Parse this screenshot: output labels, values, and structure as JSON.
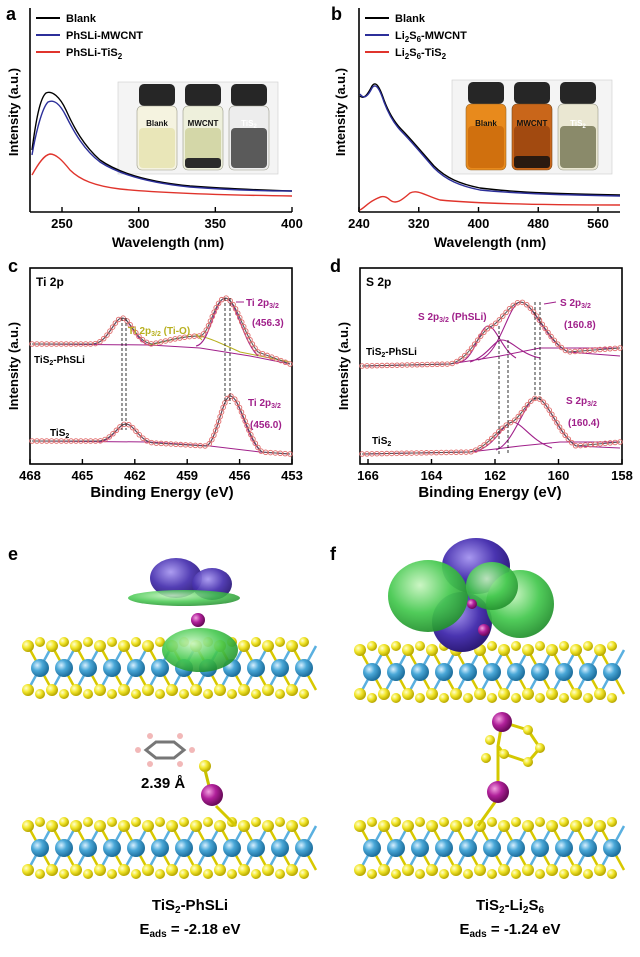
{
  "panels": {
    "a": {
      "letter": "a",
      "xlabel": "Wavelength (nm)",
      "ylabel": "Intensity (a.u.)",
      "xticks": [
        "250",
        "300",
        "350",
        "400"
      ],
      "legend": [
        {
          "text": "Blank",
          "color": "#000000"
        },
        {
          "text": "PhSLi-MWCNT",
          "color": "#2c2f9a"
        },
        {
          "text": "PhSLi-TiS",
          "sub": "2",
          "color": "#e0342c"
        }
      ],
      "vials": [
        "Blank",
        "MWCNT",
        "TiS",
        "2"
      ]
    },
    "b": {
      "letter": "b",
      "xlabel": "Wavelength (nm)",
      "ylabel": "Intensity (a.u.)",
      "xticks": [
        "240",
        "320",
        "400",
        "480",
        "560"
      ],
      "legend": [
        {
          "text": "Blank",
          "color": "#000000"
        },
        {
          "text": "Li",
          "sub": "2",
          "text2": "S",
          "sub2": "6",
          "text3": "-MWCNT",
          "color": "#2c2f9a"
        },
        {
          "text": "Li",
          "sub": "2",
          "text2": "S",
          "sub2": "6",
          "text3": "-TiS",
          "sub3": "2",
          "color": "#e0342c"
        }
      ],
      "vials": [
        "Blank",
        "MWCNT",
        "TiS",
        "2"
      ]
    },
    "c": {
      "letter": "c",
      "element": "Ti 2p",
      "xlabel": "Binding Energy (eV)",
      "ylabel": "Intensity (a.u.)",
      "xticks": [
        "468",
        "465",
        "462",
        "459",
        "456",
        "453"
      ],
      "upper_sample": "TiS",
      "upper_sub": "2",
      "upper_rest": "-PhSLi",
      "lower_sample": "TiS",
      "lower_sub": "2",
      "peak_label": "Ti 2p",
      "peak_sub": "3/2",
      "peak_upper_value": "(456.3)",
      "peak_lower_value": "(456.0)",
      "tio_label": "Ti 2p",
      "tio_sub": "3/2",
      "tio_rest": " (Ti-O)"
    },
    "d": {
      "letter": "d",
      "element": "S 2p",
      "xlabel": "Binding Energy (eV)",
      "ylabel": "Intensity (a.u.)",
      "xticks": [
        "166",
        "164",
        "162",
        "160",
        "158"
      ],
      "upper_sample": "TiS",
      "upper_sub": "2",
      "upper_rest": "-PhSLi",
      "lower_sample": "TiS",
      "lower_sub": "2",
      "phsli_label": "S 2p",
      "phsli_sub": "3/2",
      "phsli_rest": " (PhSLi)",
      "peak_label": "S 2p",
      "peak_sub": "3/2",
      "peak_upper_value": "(160.8)",
      "peak_lower_value": "(160.4)"
    },
    "e": {
      "letter": "e",
      "distance": "2.39 Å",
      "caption_line1": "TiS",
      "caption_sub1": "2",
      "caption_rest1": "-PhSLi",
      "caption_line2_pre": "E",
      "caption_line2_sub": "ads",
      "caption_line2_val": " = -2.18 eV"
    },
    "f": {
      "letter": "f",
      "caption_line1": "TiS",
      "caption_sub1": "2",
      "caption_rest1": "-Li",
      "caption_sub1b": "2",
      "caption_rest1b": "S",
      "caption_sub1c": "6",
      "caption_line2_pre": "E",
      "caption_line2_sub": "ads",
      "caption_line2_val": " = -1.24 eV"
    }
  },
  "colors": {
    "blank": "#000000",
    "mwcnt": "#2c2f9a",
    "tis2": "#e0342c",
    "ti_atom": "#4aa8d8",
    "s_atom": "#f2e62a",
    "li_atom": "#b0209a",
    "iso_green": "#33c24a",
    "iso_blue": "#4a34b0",
    "peak_magenta": "#a0208a",
    "tio_olive": "#b8b020"
  }
}
